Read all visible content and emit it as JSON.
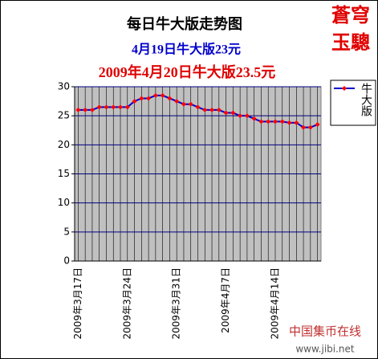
{
  "chart_data": {
    "type": "line",
    "title": "每日牛大版走势图",
    "subtitle": "4月19日牛大版23元",
    "subtitle2": "2009年4月20日牛大版23.5元",
    "categories": [
      "2009年3月17日",
      null,
      null,
      null,
      null,
      null,
      null,
      "2009年3月24日",
      null,
      null,
      null,
      null,
      null,
      null,
      "2009年3月31日",
      null,
      null,
      null,
      null,
      null,
      null,
      "2009年4月7日",
      null,
      null,
      null,
      null,
      null,
      null,
      "2009年4月14日",
      null,
      null,
      null,
      null,
      null,
      null
    ],
    "series": [
      {
        "name": "牛大版",
        "color": "#0000cc",
        "marker_color": "#ff0000",
        "values": [
          26,
          26,
          26,
          26.5,
          26.5,
          26.5,
          26.5,
          26.5,
          27.5,
          28,
          28,
          28.5,
          28.5,
          28,
          27.5,
          27,
          27,
          26.5,
          26,
          26,
          26,
          25.5,
          25.5,
          25,
          25,
          24.5,
          24,
          24,
          24,
          24,
          23.8,
          23.8,
          23,
          23,
          23.5
        ]
      }
    ],
    "ylim": [
      0,
      30
    ],
    "yticks": [
      0,
      5,
      10,
      15,
      20,
      25,
      30
    ],
    "grid": true,
    "plot_color": "#c0c0c0",
    "legend": "right"
  },
  "annotations": {
    "badge": [
      "蒼穹",
      "玉驄"
    ],
    "site": "中国集币在线",
    "url": "www.jibi.net"
  }
}
